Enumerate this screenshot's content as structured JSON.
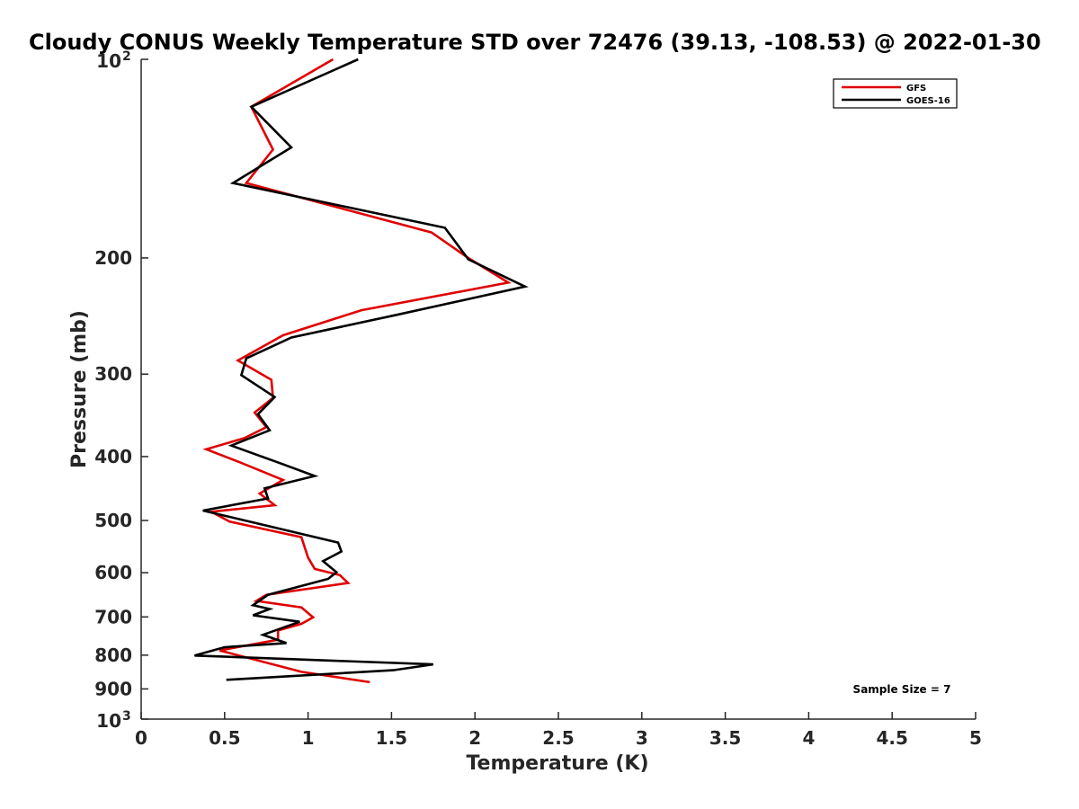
{
  "chart_data": {
    "type": "line",
    "title": "Cloudy CONUS Weekly Temperature STD over 72476 (39.13, -108.53) @ 2022-01-30",
    "xlabel": "Temperature (K)",
    "ylabel": "Pressure (mb)",
    "xlim": [
      0,
      5
    ],
    "ylim": [
      100,
      1000
    ],
    "yscale": "log",
    "y_reversed": true,
    "grid": false,
    "legend_position": "top-right",
    "x_ticks": [
      {
        "value": 0,
        "label": "0"
      },
      {
        "value": 0.5,
        "label": "0.5"
      },
      {
        "value": 1,
        "label": "1"
      },
      {
        "value": 1.5,
        "label": "1.5"
      },
      {
        "value": 2,
        "label": "2"
      },
      {
        "value": 2.5,
        "label": "2.5"
      },
      {
        "value": 3,
        "label": "3"
      },
      {
        "value": 3.5,
        "label": "3.5"
      },
      {
        "value": 4,
        "label": "4"
      },
      {
        "value": 4.5,
        "label": "4.5"
      },
      {
        "value": 5,
        "label": "5"
      }
    ],
    "y_ticks": [
      {
        "value": 100,
        "base": "10",
        "exp": "2"
      },
      {
        "value": 200,
        "label": "200"
      },
      {
        "value": 300,
        "label": "300"
      },
      {
        "value": 400,
        "label": "400"
      },
      {
        "value": 500,
        "label": "500"
      },
      {
        "value": 600,
        "label": "600"
      },
      {
        "value": 700,
        "label": "700"
      },
      {
        "value": 800,
        "label": "800"
      },
      {
        "value": 900,
        "label": "900"
      },
      {
        "value": 1000,
        "base": "10",
        "exp": "3"
      }
    ],
    "series": [
      {
        "name": "GFS",
        "color": "#e00000",
        "points": [
          {
            "x": 1.15,
            "y": 100
          },
          {
            "x": 0.66,
            "y": 118
          },
          {
            "x": 0.79,
            "y": 137
          },
          {
            "x": 0.63,
            "y": 154
          },
          {
            "x": 1.74,
            "y": 183
          },
          {
            "x": 1.96,
            "y": 200
          },
          {
            "x": 2.2,
            "y": 218
          },
          {
            "x": 1.32,
            "y": 240
          },
          {
            "x": 0.85,
            "y": 262
          },
          {
            "x": 0.58,
            "y": 286
          },
          {
            "x": 0.78,
            "y": 306
          },
          {
            "x": 0.79,
            "y": 326
          },
          {
            "x": 0.68,
            "y": 343
          },
          {
            "x": 0.75,
            "y": 361
          },
          {
            "x": 0.62,
            "y": 375
          },
          {
            "x": 0.39,
            "y": 390
          },
          {
            "x": 0.59,
            "y": 408
          },
          {
            "x": 0.85,
            "y": 434
          },
          {
            "x": 0.71,
            "y": 455
          },
          {
            "x": 0.8,
            "y": 474
          },
          {
            "x": 0.42,
            "y": 485
          },
          {
            "x": 0.53,
            "y": 502
          },
          {
            "x": 0.96,
            "y": 530
          },
          {
            "x": 1.0,
            "y": 569
          },
          {
            "x": 1.04,
            "y": 592
          },
          {
            "x": 1.19,
            "y": 605
          },
          {
            "x": 1.24,
            "y": 622
          },
          {
            "x": 0.75,
            "y": 648
          },
          {
            "x": 0.69,
            "y": 662
          },
          {
            "x": 0.96,
            "y": 677
          },
          {
            "x": 1.03,
            "y": 701
          },
          {
            "x": 0.96,
            "y": 717
          },
          {
            "x": 0.82,
            "y": 734
          },
          {
            "x": 0.82,
            "y": 758
          },
          {
            "x": 0.47,
            "y": 787
          },
          {
            "x": 0.96,
            "y": 848
          },
          {
            "x": 1.37,
            "y": 879
          }
        ]
      },
      {
        "name": "GOES-16",
        "color": "#000000",
        "points": [
          {
            "x": 1.3,
            "y": 100
          },
          {
            "x": 0.66,
            "y": 118
          },
          {
            "x": 0.9,
            "y": 136
          },
          {
            "x": 0.55,
            "y": 154
          },
          {
            "x": 1.82,
            "y": 180
          },
          {
            "x": 1.96,
            "y": 201
          },
          {
            "x": 2.3,
            "y": 221
          },
          {
            "x": 1.53,
            "y": 244
          },
          {
            "x": 0.9,
            "y": 264
          },
          {
            "x": 0.63,
            "y": 284
          },
          {
            "x": 0.6,
            "y": 301
          },
          {
            "x": 0.8,
            "y": 325
          },
          {
            "x": 0.7,
            "y": 345
          },
          {
            "x": 0.77,
            "y": 365
          },
          {
            "x": 0.54,
            "y": 385
          },
          {
            "x": 0.84,
            "y": 410
          },
          {
            "x": 1.04,
            "y": 428
          },
          {
            "x": 0.74,
            "y": 447
          },
          {
            "x": 0.76,
            "y": 463
          },
          {
            "x": 0.37,
            "y": 483
          },
          {
            "x": 1.18,
            "y": 540
          },
          {
            "x": 1.2,
            "y": 557
          },
          {
            "x": 1.09,
            "y": 576
          },
          {
            "x": 1.17,
            "y": 599
          },
          {
            "x": 1.12,
            "y": 613
          },
          {
            "x": 0.76,
            "y": 648
          },
          {
            "x": 0.67,
            "y": 672
          },
          {
            "x": 0.77,
            "y": 681
          },
          {
            "x": 0.67,
            "y": 696
          },
          {
            "x": 0.95,
            "y": 712
          },
          {
            "x": 0.73,
            "y": 745
          },
          {
            "x": 0.87,
            "y": 767
          },
          {
            "x": 0.5,
            "y": 778
          },
          {
            "x": 0.32,
            "y": 801
          },
          {
            "x": 1.75,
            "y": 826
          },
          {
            "x": 1.51,
            "y": 843
          },
          {
            "x": 0.51,
            "y": 872
          }
        ]
      }
    ],
    "annotation": "Sample Size = 7"
  }
}
